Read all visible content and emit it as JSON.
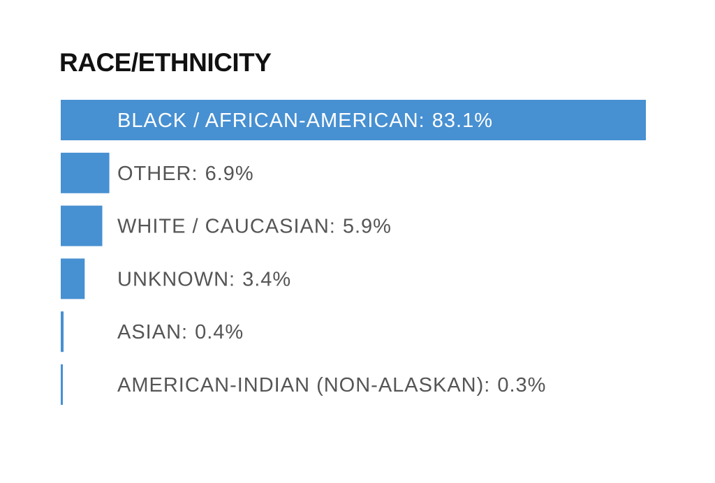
{
  "chart_data": {
    "type": "bar",
    "orientation": "horizontal",
    "title": "RACE/ETHNICITY",
    "categories": [
      "BLACK / AFRICAN-AMERICAN:",
      "OTHER:",
      "WHITE / CAUCASIAN:",
      "UNKNOWN:",
      "ASIAN:",
      "AMERICAN-INDIAN (NON-ALASKAN):"
    ],
    "values": [
      83.1,
      6.9,
      5.9,
      3.4,
      0.4,
      0.3
    ],
    "value_labels": [
      "83.1%",
      "6.9%",
      "5.9%",
      "3.4%",
      "0.4%",
      "0.3%"
    ],
    "color": "#4790d2",
    "xlim": [
      0,
      83.1
    ]
  }
}
